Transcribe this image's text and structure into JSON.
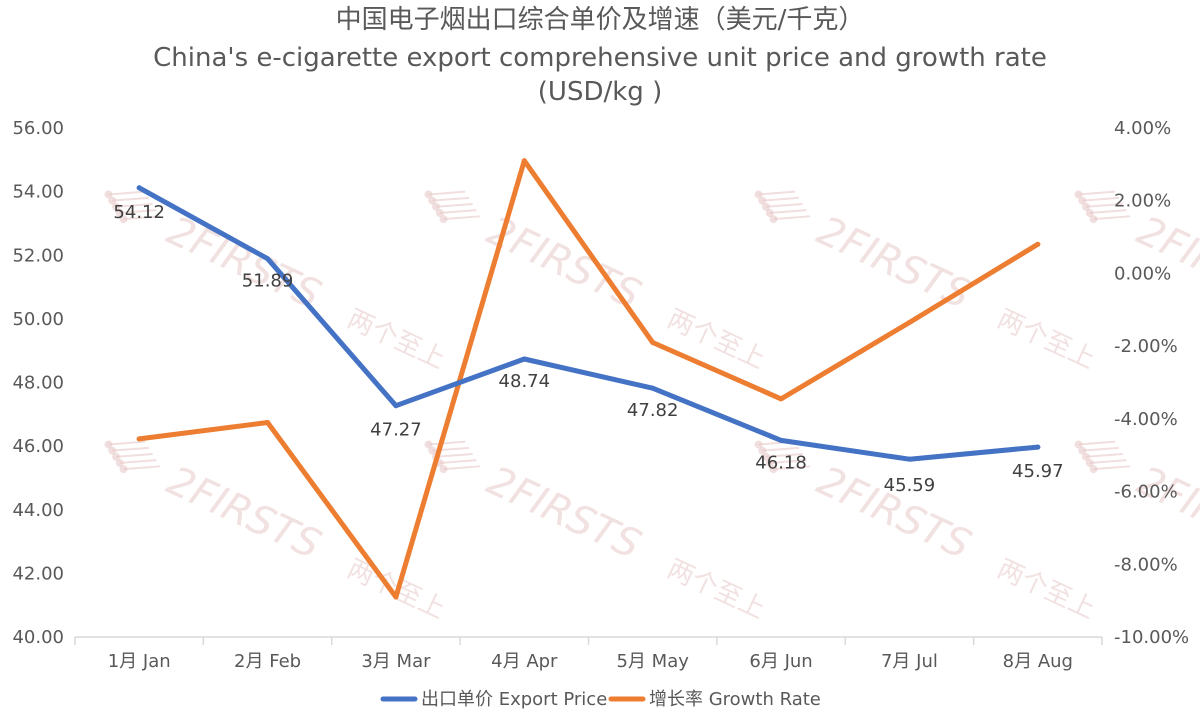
{
  "chart_data": {
    "type": "line",
    "title": [
      "中国电子烟出口综合单价及增速（美元/千克）",
      "China's e-cigarette export comprehensive unit price and growth rate",
      "(USD/kg )"
    ],
    "categories": [
      "1月 Jan",
      "2月 Feb",
      "3月 Mar",
      "4月 Apr",
      "5月 May",
      "6月 Jun",
      "7月 Jul",
      "8月 Aug"
    ],
    "series": [
      {
        "name": "出口单价 Export Price",
        "axis": "left",
        "color": "#4472c4",
        "values": [
          54.12,
          51.89,
          47.27,
          48.74,
          47.82,
          46.18,
          45.59,
          45.97
        ],
        "labels": [
          "54.12",
          "51.89",
          "47.27",
          "48.74",
          "47.82",
          "46.18",
          "45.59",
          "45.97"
        ]
      },
      {
        "name": "增长率 Growth Rate",
        "axis": "right",
        "color": "#ed7d31",
        "values": [
          -4.55,
          -4.1,
          -8.9,
          3.1,
          -1.9,
          -3.45,
          -1.35,
          0.8
        ]
      }
    ],
    "y_left": {
      "min": 40,
      "max": 56,
      "step": 2,
      "ticks": [
        "40.00",
        "42.00",
        "44.00",
        "46.00",
        "48.00",
        "50.00",
        "52.00",
        "54.00",
        "56.00"
      ]
    },
    "y_right": {
      "min": -10,
      "max": 4,
      "step": 2,
      "ticks": [
        "-10.00%",
        "-8.00%",
        "-6.00%",
        "-4.00%",
        "-2.00%",
        "0.00%",
        "2.00%",
        "4.00%"
      ]
    },
    "grid": false,
    "legend_position": "bottom"
  },
  "watermark": {
    "brand": "2FIRSTS",
    "cn": "两个至上"
  }
}
